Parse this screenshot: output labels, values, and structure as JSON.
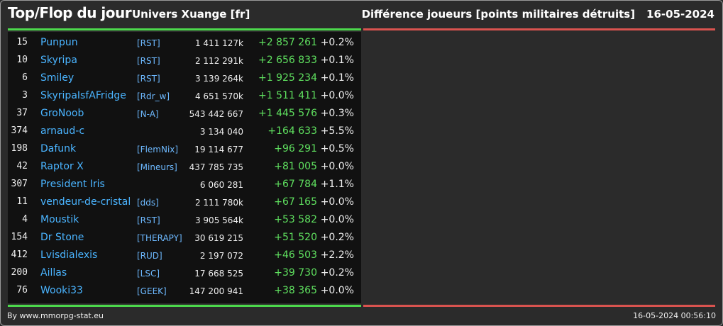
{
  "header": {
    "title": "Top/Flop du jour",
    "universe": "Univers Xuange [fr]",
    "metric": "Différence joueurs [points militaires détruits]",
    "date": "16-05-2024"
  },
  "rows": [
    {
      "rank": "15",
      "name": "Punpun",
      "ally": "[RST]",
      "points": "1 411 127k",
      "diff": "+2 857 261",
      "pct": "+0.2%"
    },
    {
      "rank": "10",
      "name": "Skyripa",
      "ally": "[RST]",
      "points": "2 112 291k",
      "diff": "+2 656 833",
      "pct": "+0.1%"
    },
    {
      "rank": "6",
      "name": "Smiley",
      "ally": "[RST]",
      "points": "3 139 264k",
      "diff": "+1 925 234",
      "pct": "+0.1%"
    },
    {
      "rank": "3",
      "name": "SkyripaIsfAFridge",
      "ally": "[Rdr_w]",
      "points": "4 651 570k",
      "diff": "+1 511 411",
      "pct": "+0.0%"
    },
    {
      "rank": "37",
      "name": "GroNoob",
      "ally": "[N-A]",
      "points": "543 442 667",
      "diff": "+1 445 576",
      "pct": "+0.3%"
    },
    {
      "rank": "374",
      "name": "arnaud-c",
      "ally": "",
      "points": "3 134 040",
      "diff": "+164 633",
      "pct": "+5.5%"
    },
    {
      "rank": "198",
      "name": "Dafunk",
      "ally": "[FlemNix]",
      "points": "19 114 677",
      "diff": "+96 291",
      "pct": "+0.5%"
    },
    {
      "rank": "42",
      "name": "Raptor X",
      "ally": "[Mineurs]",
      "points": "437 785 735",
      "diff": "+81 005",
      "pct": "+0.0%"
    },
    {
      "rank": "307",
      "name": "President Iris",
      "ally": "",
      "points": "6 060 281",
      "diff": "+67 784",
      "pct": "+1.1%"
    },
    {
      "rank": "11",
      "name": "vendeur-de-cristal",
      "ally": "[dds]",
      "points": "2 111 780k",
      "diff": "+67 165",
      "pct": "+0.0%"
    },
    {
      "rank": "4",
      "name": "Moustik",
      "ally": "[RST]",
      "points": "3 905 564k",
      "diff": "+53 582",
      "pct": "+0.0%"
    },
    {
      "rank": "154",
      "name": "Dr Stone",
      "ally": "[THERAPY]",
      "points": "30 619 215",
      "diff": "+51 520",
      "pct": "+0.2%"
    },
    {
      "rank": "412",
      "name": "Lvisdialexis",
      "ally": "[RUD]",
      "points": "2 197 072",
      "diff": "+46 503",
      "pct": "+2.2%"
    },
    {
      "rank": "200",
      "name": "Aillas",
      "ally": "[LSC]",
      "points": "17 668 525",
      "diff": "+39 730",
      "pct": "+0.2%"
    },
    {
      "rank": "76",
      "name": "Wooki33",
      "ally": "[GEEK]",
      "points": "147 200 941",
      "diff": "+38 365",
      "pct": "+0.0%"
    }
  ],
  "footer": {
    "credit": "By www.mmorpg-stat.eu",
    "timestamp": "16-05-2024 00:56:10"
  },
  "colors": {
    "top_line": "#4cd94c",
    "flop_line": "#d9534f",
    "name": "#4ab4ff",
    "diff": "#5fe05f"
  }
}
